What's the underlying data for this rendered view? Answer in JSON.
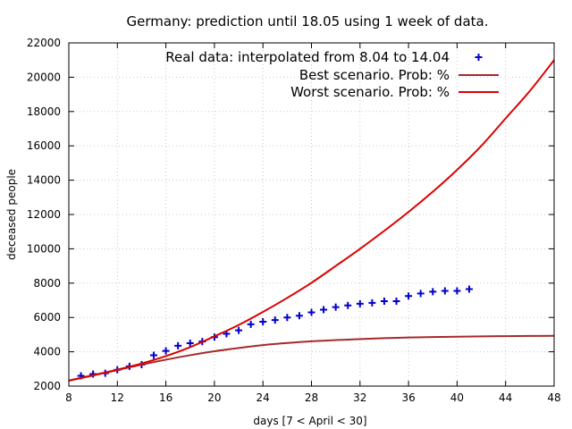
{
  "chart_data": {
    "type": "line",
    "title": "Germany: prediction until 18.05 using 1 week of data.",
    "xlabel": "days [7 < April < 30]",
    "ylabel": "deceased people",
    "xlim": [
      8,
      48
    ],
    "ylim": [
      2000,
      22000
    ],
    "x_ticks": [
      8,
      12,
      16,
      20,
      24,
      28,
      32,
      36,
      40,
      44,
      48
    ],
    "y_ticks": [
      2000,
      4000,
      6000,
      8000,
      10000,
      12000,
      14000,
      16000,
      18000,
      20000,
      22000
    ],
    "grid": true,
    "legend_position": "top-right",
    "series": [
      {
        "name": "Real data: interpolated from 8.04 to 14.04",
        "kind": "scatter",
        "marker": "+",
        "color": "#0000cc",
        "x": [
          9,
          10,
          11,
          12,
          13,
          14,
          15,
          16,
          17,
          18,
          19,
          20,
          21,
          22,
          23,
          24,
          25,
          26,
          27,
          28,
          29,
          30,
          31,
          32,
          33,
          34,
          35,
          36,
          37,
          38,
          39,
          40,
          41
        ],
        "y": [
          2600,
          2700,
          2750,
          2950,
          3150,
          3250,
          3800,
          4050,
          4350,
          4500,
          4600,
          4850,
          5050,
          5250,
          5600,
          5750,
          5850,
          6000,
          6100,
          6300,
          6450,
          6600,
          6700,
          6800,
          6850,
          6950,
          6950,
          7250,
          7400,
          7500,
          7550,
          7550,
          7650
        ]
      },
      {
        "name": "Best scenario. Prob: %",
        "kind": "line",
        "color": "#a52a2a",
        "x": [
          8,
          10,
          12,
          14,
          16,
          18,
          20,
          22,
          24,
          26,
          28,
          30,
          32,
          34,
          36,
          38,
          40,
          42,
          44,
          46,
          48
        ],
        "y": [
          2320,
          2620,
          2930,
          3250,
          3540,
          3800,
          4030,
          4220,
          4390,
          4510,
          4610,
          4680,
          4740,
          4790,
          4830,
          4860,
          4880,
          4900,
          4910,
          4920,
          4930
        ]
      },
      {
        "name": "Worst scenario. Prob: %",
        "kind": "line",
        "color": "#dd0000",
        "x": [
          8,
          10,
          12,
          14,
          16,
          18,
          20,
          22,
          24,
          26,
          28,
          30,
          32,
          34,
          36,
          38,
          40,
          42,
          44,
          46,
          48
        ],
        "y": [
          2320,
          2640,
          2960,
          3320,
          3750,
          4270,
          4900,
          5560,
          6320,
          7140,
          8020,
          9000,
          10000,
          11050,
          12150,
          13330,
          14600,
          16000,
          17600,
          19200,
          21000
        ]
      }
    ]
  }
}
